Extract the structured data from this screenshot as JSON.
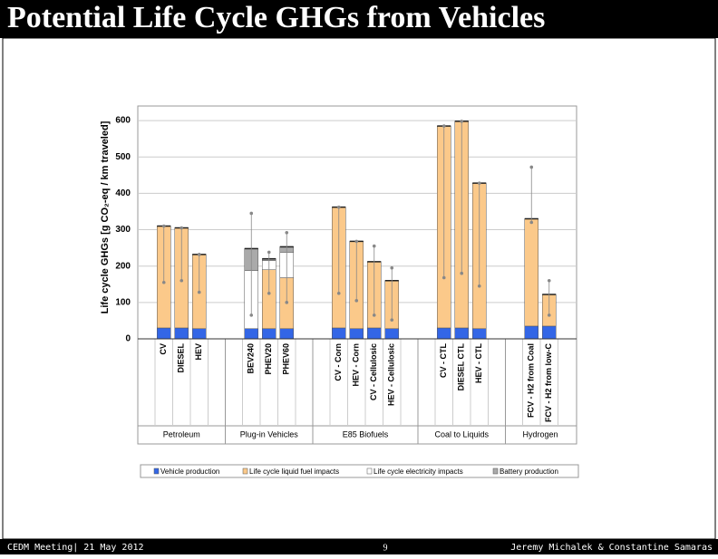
{
  "header": {
    "title": "Potential Life Cycle GHGs from Vehicles"
  },
  "chart_data": {
    "type": "bar",
    "stacked": true,
    "y_label": "Life cycle GHGs [g CO₂-eq / km traveled]",
    "groups": [
      {
        "name": "Petroleum",
        "categories": [
          "CV",
          "DIESEL",
          "HEV"
        ]
      },
      {
        "name": "Plug-in Vehicles",
        "categories": [
          "BEV240",
          "PHEV20",
          "PHEV60"
        ]
      },
      {
        "name": "E85 Biofuels",
        "categories": [
          "CV - Corn",
          "HEV - Corn",
          "CV - Cellulosic",
          "HEV - Cellulosic"
        ]
      },
      {
        "name": "Coal to Liquids",
        "categories": [
          "CV - CTL",
          "DIESEL CTL",
          "HEV - CTL"
        ]
      },
      {
        "name": "Hydrogen",
        "categories": [
          "FCV - H2 from Coal",
          "FCV - H2 from low-C"
        ]
      }
    ],
    "series": [
      {
        "name": "Vehicle production",
        "color": "#3366e6",
        "values": [
          30,
          30,
          28,
          28,
          28,
          28,
          30,
          28,
          30,
          28,
          30,
          30,
          28,
          35,
          35
        ]
      },
      {
        "name": "Life cycle liquid fuel impacts",
        "color": "#fbc98a",
        "values": [
          280,
          275,
          204,
          0,
          162,
          140,
          332,
          240,
          182,
          132,
          555,
          568,
          400,
          295,
          87
        ]
      },
      {
        "name": "Life cycle electricity impacts",
        "color": "#ffffff",
        "values": [
          0,
          0,
          0,
          160,
          25,
          70,
          0,
          0,
          0,
          0,
          0,
          0,
          0,
          0,
          0
        ]
      },
      {
        "name": "Battery production",
        "color": "#aaaaaa",
        "values": [
          0,
          0,
          0,
          60,
          5,
          15,
          0,
          0,
          0,
          0,
          0,
          0,
          0,
          0,
          0
        ]
      }
    ],
    "error_low": [
      155,
      160,
      128,
      65,
      125,
      100,
      125,
      105,
      65,
      52,
      168,
      180,
      145,
      320,
      65
    ],
    "error_high": [
      310,
      305,
      232,
      345,
      238,
      292,
      362,
      268,
      255,
      195,
      585,
      598,
      428,
      472,
      160
    ],
    "ylim": [
      0,
      640
    ],
    "yticks": [
      0,
      100,
      200,
      300,
      400,
      500,
      600
    ],
    "grid": true
  },
  "footer": {
    "left": "CEDM Meeting| 21 May 2012",
    "page": "9",
    "right": "Jeremy Michalek & Constantine Samaras"
  }
}
